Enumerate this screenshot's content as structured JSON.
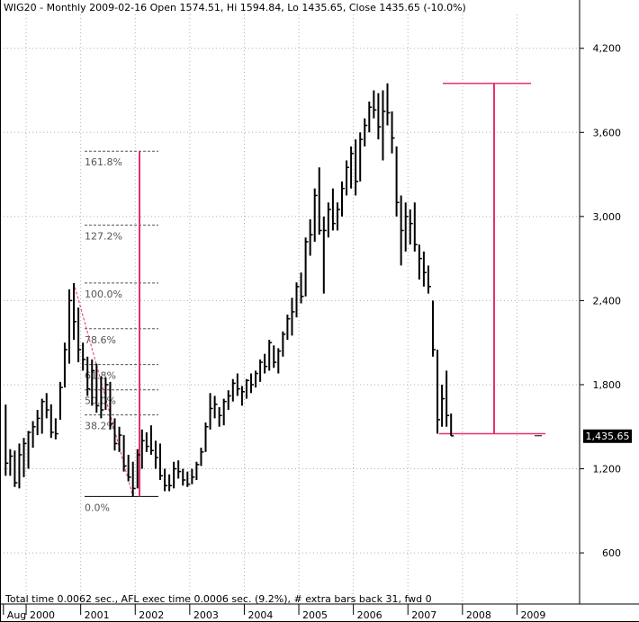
{
  "chart_data": {
    "type": "ohlc",
    "title": "WIG20 - Monthly 2009-02-16 Open 1574.51, Hi 1594.84, Lo 1435.65, Close 1435.65 (-10.0%)",
    "footer": "Total time 0.0062 sec., AFL exec time 0.0006 sec. (9.2%), # extra bars back 31, fwd 0",
    "y_ticks": [
      "4,200",
      "3,600",
      "3,000",
      "2,400",
      "1,800",
      "1,200",
      "600"
    ],
    "y_tick_values": [
      4200,
      3600,
      3000,
      2400,
      1800,
      1200,
      600
    ],
    "ylim": [
      235,
      4442
    ],
    "x_ticks": [
      "Aug",
      "2000",
      "2001",
      "2002",
      "2003",
      "2004",
      "2005",
      "2006",
      "2007",
      "2008",
      "2009"
    ],
    "x_tick_positions": [
      0,
      5,
      17,
      29,
      41,
      53,
      65,
      77,
      89,
      101,
      113
    ],
    "last_price_label": "1,435.65",
    "last_price": 1435.65,
    "colors": {
      "bars": "#000000",
      "projection": "#e8306a",
      "fib": "#555555",
      "grid": "#b0b0b0"
    },
    "fibonacci": {
      "levels": [
        {
          "label": "161.8%",
          "value": 3466
        },
        {
          "label": "127.2%",
          "value": 2939
        },
        {
          "label": "100.0%",
          "value": 2525
        },
        {
          "label": "78.6%",
          "value": 2199
        },
        {
          "label": "61.8%",
          "value": 1943
        },
        {
          "label": "50.0%",
          "value": 1763
        },
        {
          "label": "38.2%",
          "value": 1584
        },
        {
          "label": "0.0%",
          "value": 1002
        }
      ]
    },
    "bars": [
      {
        "i": 0,
        "h": 1658,
        "l": 1150,
        "c": 1240
      },
      {
        "i": 1,
        "h": 1340,
        "l": 1150,
        "c": 1290
      },
      {
        "i": 2,
        "h": 1330,
        "l": 1070,
        "c": 1100
      },
      {
        "i": 3,
        "h": 1380,
        "l": 1060,
        "c": 1300
      },
      {
        "i": 4,
        "h": 1420,
        "l": 1140,
        "c": 1380
      },
      {
        "i": 5,
        "h": 1470,
        "l": 1200,
        "c": 1460
      },
      {
        "i": 6,
        "h": 1540,
        "l": 1350,
        "c": 1500
      },
      {
        "i": 7,
        "h": 1620,
        "l": 1440,
        "c": 1560
      },
      {
        "i": 8,
        "h": 1700,
        "l": 1450,
        "c": 1680
      },
      {
        "i": 9,
        "h": 1740,
        "l": 1560,
        "c": 1620
      },
      {
        "i": 10,
        "h": 1660,
        "l": 1420,
        "c": 1460
      },
      {
        "i": 11,
        "h": 1560,
        "l": 1410,
        "c": 1450
      },
      {
        "i": 12,
        "h": 1820,
        "l": 1550,
        "c": 1780
      },
      {
        "i": 13,
        "h": 2100,
        "l": 1780,
        "c": 2050
      },
      {
        "i": 14,
        "h": 2480,
        "l": 1950,
        "c": 2400
      },
      {
        "i": 15,
        "h": 2525,
        "l": 2120,
        "c": 2250
      },
      {
        "i": 16,
        "h": 2350,
        "l": 1960,
        "c": 2050
      },
      {
        "i": 17,
        "h": 2100,
        "l": 1900,
        "c": 1980
      },
      {
        "i": 18,
        "h": 2000,
        "l": 1720,
        "c": 1770
      },
      {
        "i": 19,
        "h": 1980,
        "l": 1650,
        "c": 1900
      },
      {
        "i": 20,
        "h": 1950,
        "l": 1600,
        "c": 1650
      },
      {
        "i": 21,
        "h": 1860,
        "l": 1560,
        "c": 1620
      },
      {
        "i": 22,
        "h": 1850,
        "l": 1620,
        "c": 1800
      },
      {
        "i": 23,
        "h": 1820,
        "l": 1480,
        "c": 1520
      },
      {
        "i": 24,
        "h": 1560,
        "l": 1330,
        "c": 1380
      },
      {
        "i": 25,
        "h": 1500,
        "l": 1320,
        "c": 1440
      },
      {
        "i": 26,
        "h": 1440,
        "l": 1180,
        "c": 1220
      },
      {
        "i": 27,
        "h": 1300,
        "l": 1110,
        "c": 1140
      },
      {
        "i": 28,
        "h": 1250,
        "l": 1002,
        "c": 1060
      },
      {
        "i": 29,
        "h": 1340,
        "l": 1060,
        "c": 1300
      },
      {
        "i": 30,
        "h": 1480,
        "l": 1200,
        "c": 1400
      },
      {
        "i": 31,
        "h": 1460,
        "l": 1320,
        "c": 1360
      },
      {
        "i": 32,
        "h": 1510,
        "l": 1300,
        "c": 1330
      },
      {
        "i": 33,
        "h": 1400,
        "l": 1200,
        "c": 1280
      },
      {
        "i": 34,
        "h": 1380,
        "l": 1120,
        "c": 1150
      },
      {
        "i": 35,
        "h": 1200,
        "l": 1040,
        "c": 1080
      },
      {
        "i": 36,
        "h": 1160,
        "l": 1040,
        "c": 1080
      },
      {
        "i": 37,
        "h": 1250,
        "l": 1060,
        "c": 1200
      },
      {
        "i": 38,
        "h": 1260,
        "l": 1130,
        "c": 1180
      },
      {
        "i": 39,
        "h": 1200,
        "l": 1080,
        "c": 1120
      },
      {
        "i": 40,
        "h": 1180,
        "l": 1070,
        "c": 1090
      },
      {
        "i": 41,
        "h": 1200,
        "l": 1090,
        "c": 1140
      },
      {
        "i": 42,
        "h": 1250,
        "l": 1120,
        "c": 1230
      },
      {
        "i": 43,
        "h": 1350,
        "l": 1220,
        "c": 1320
      },
      {
        "i": 44,
        "h": 1530,
        "l": 1320,
        "c": 1500
      },
      {
        "i": 45,
        "h": 1740,
        "l": 1480,
        "c": 1630
      },
      {
        "i": 46,
        "h": 1720,
        "l": 1560,
        "c": 1660
      },
      {
        "i": 47,
        "h": 1640,
        "l": 1500,
        "c": 1580
      },
      {
        "i": 48,
        "h": 1700,
        "l": 1510,
        "c": 1680
      },
      {
        "i": 49,
        "h": 1760,
        "l": 1620,
        "c": 1720
      },
      {
        "i": 50,
        "h": 1840,
        "l": 1680,
        "c": 1810
      },
      {
        "i": 51,
        "h": 1880,
        "l": 1720,
        "c": 1770
      },
      {
        "i": 52,
        "h": 1790,
        "l": 1650,
        "c": 1750
      },
      {
        "i": 53,
        "h": 1840,
        "l": 1700,
        "c": 1830
      },
      {
        "i": 54,
        "h": 1880,
        "l": 1740,
        "c": 1800
      },
      {
        "i": 55,
        "h": 1900,
        "l": 1780,
        "c": 1880
      },
      {
        "i": 56,
        "h": 1980,
        "l": 1820,
        "c": 1960
      },
      {
        "i": 57,
        "h": 2020,
        "l": 1880,
        "c": 1930
      },
      {
        "i": 58,
        "h": 2120,
        "l": 1900,
        "c": 2100
      },
      {
        "i": 59,
        "h": 2080,
        "l": 1920,
        "c": 1960
      },
      {
        "i": 60,
        "h": 2060,
        "l": 1880,
        "c": 2040
      },
      {
        "i": 61,
        "h": 2180,
        "l": 2000,
        "c": 2160
      },
      {
        "i": 62,
        "h": 2300,
        "l": 2120,
        "c": 2270
      },
      {
        "i": 63,
        "h": 2420,
        "l": 2150,
        "c": 2320
      },
      {
        "i": 64,
        "h": 2530,
        "l": 2280,
        "c": 2500
      },
      {
        "i": 65,
        "h": 2600,
        "l": 2380,
        "c": 2430
      },
      {
        "i": 66,
        "h": 2850,
        "l": 2430,
        "c": 2820
      },
      {
        "i": 67,
        "h": 2980,
        "l": 2720,
        "c": 2870
      },
      {
        "i": 68,
        "h": 3200,
        "l": 2820,
        "c": 3150
      },
      {
        "i": 69,
        "h": 3350,
        "l": 2870,
        "c": 2900
      },
      {
        "i": 70,
        "h": 3000,
        "l": 2450,
        "c": 2900
      },
      {
        "i": 71,
        "h": 3100,
        "l": 2850,
        "c": 3050
      },
      {
        "i": 72,
        "h": 3200,
        "l": 2900,
        "c": 2950
      },
      {
        "i": 73,
        "h": 3100,
        "l": 2900,
        "c": 3050
      },
      {
        "i": 74,
        "h": 3250,
        "l": 3000,
        "c": 3200
      },
      {
        "i": 75,
        "h": 3400,
        "l": 3150,
        "c": 3350
      },
      {
        "i": 76,
        "h": 3500,
        "l": 3200,
        "c": 3450
      },
      {
        "i": 77,
        "h": 3550,
        "l": 3150,
        "c": 3250
      },
      {
        "i": 78,
        "h": 3600,
        "l": 3250,
        "c": 3550
      },
      {
        "i": 79,
        "h": 3700,
        "l": 3500,
        "c": 3650
      },
      {
        "i": 80,
        "h": 3820,
        "l": 3600,
        "c": 3780
      },
      {
        "i": 81,
        "h": 3900,
        "l": 3700,
        "c": 3760
      },
      {
        "i": 82,
        "h": 3880,
        "l": 3550,
        "c": 3640
      },
      {
        "i": 83,
        "h": 3900,
        "l": 3400,
        "c": 3750
      },
      {
        "i": 84,
        "h": 3950,
        "l": 3650,
        "c": 3740
      },
      {
        "i": 85,
        "h": 3750,
        "l": 3450,
        "c": 3560
      },
      {
        "i": 86,
        "h": 3500,
        "l": 3000,
        "c": 3100
      },
      {
        "i": 87,
        "h": 3150,
        "l": 2650,
        "c": 2900
      },
      {
        "i": 88,
        "h": 3100,
        "l": 2750,
        "c": 3000
      },
      {
        "i": 89,
        "h": 3050,
        "l": 2800,
        "c": 2950
      },
      {
        "i": 90,
        "h": 3100,
        "l": 2750,
        "c": 2800
      },
      {
        "i": 91,
        "h": 2800,
        "l": 2550,
        "c": 2700
      },
      {
        "i": 92,
        "h": 2750,
        "l": 2500,
        "c": 2600
      },
      {
        "i": 93,
        "h": 2650,
        "l": 2450,
        "c": 2500
      },
      {
        "i": 94,
        "h": 2400,
        "l": 2000,
        "c": 2050
      },
      {
        "i": 95,
        "h": 2050,
        "l": 1450,
        "c": 1550
      },
      {
        "i": 96,
        "h": 1800,
        "l": 1500,
        "c": 1700
      },
      {
        "i": 97,
        "h": 1900,
        "l": 1500,
        "c": 1580
      },
      {
        "i": 98,
        "h": 1594,
        "l": 1435,
        "c": 1435
      }
    ]
  }
}
